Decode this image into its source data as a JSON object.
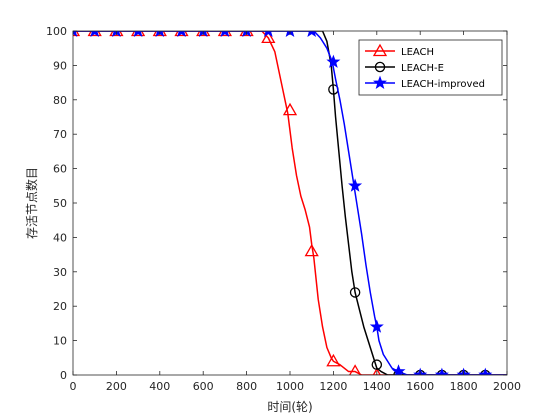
{
  "chart_data": {
    "type": "line",
    "xlabel": "时间(轮)",
    "ylabel": "存活节点数目",
    "xlim": [
      0,
      2000
    ],
    "ylim": [
      0,
      100
    ],
    "xticks": [
      0,
      200,
      400,
      600,
      800,
      1000,
      1200,
      1400,
      1600,
      1800,
      2000
    ],
    "yticks": [
      0,
      10,
      20,
      30,
      40,
      50,
      60,
      70,
      80,
      90,
      100
    ],
    "grid": false,
    "legend_position": "top-right",
    "series": [
      {
        "name": "LEACH",
        "color": "#ff0000",
        "marker": "triangle",
        "x": [
          0,
          870,
          900,
          930,
          960,
          990,
          1010,
          1030,
          1050,
          1070,
          1090,
          1100,
          1110,
          1130,
          1150,
          1170,
          1190,
          1200,
          1230,
          1270,
          1300,
          1330,
          1370,
          1400,
          1450,
          2000
        ],
        "y": [
          100,
          100,
          98,
          94,
          85,
          76,
          66,
          58,
          52,
          48,
          43,
          38,
          34,
          22,
          14,
          8,
          5,
          4,
          3,
          1,
          1,
          0,
          0,
          0,
          0,
          0
        ],
        "marker_x": [
          0,
          100,
          200,
          300,
          400,
          500,
          600,
          700,
          800,
          900,
          1000,
          1100,
          1200,
          1300,
          1400
        ],
        "marker_y": [
          100,
          100,
          100,
          100,
          100,
          100,
          100,
          100,
          100,
          98,
          77,
          36,
          4,
          1,
          0
        ]
      },
      {
        "name": "LEACH-E",
        "color": "#000000",
        "marker": "circle",
        "x": [
          0,
          1150,
          1170,
          1190,
          1200,
          1210,
          1225,
          1240,
          1255,
          1270,
          1285,
          1300,
          1320,
          1340,
          1360,
          1380,
          1390,
          1400,
          1420,
          1450,
          2000
        ],
        "y": [
          100,
          100,
          97,
          90,
          83,
          75,
          65,
          55,
          46,
          38,
          30,
          24,
          19,
          14,
          10,
          6,
          4,
          2,
          1,
          0,
          0
        ],
        "marker_x": [
          1200,
          1300,
          1400,
          1500,
          1600,
          1700,
          1800,
          1900
        ],
        "marker_y": [
          83,
          24,
          3,
          0,
          0,
          0,
          0,
          0
        ]
      },
      {
        "name": "LEACH-improved",
        "color": "#0000ff",
        "marker": "star",
        "x": [
          0,
          1110,
          1140,
          1170,
          1195,
          1210,
          1230,
          1250,
          1270,
          1290,
          1310,
          1330,
          1350,
          1370,
          1390,
          1400,
          1410,
          1430,
          1450,
          1470,
          1500,
          1540,
          2000
        ],
        "y": [
          100,
          100,
          98,
          95,
          91,
          86,
          80,
          73,
          65,
          57,
          49,
          41,
          32,
          24,
          17,
          14,
          10,
          6,
          4,
          2,
          1,
          0,
          0
        ],
        "marker_x": [
          0,
          100,
          200,
          300,
          400,
          500,
          600,
          700,
          800,
          900,
          1000,
          1100,
          1200,
          1300,
          1400,
          1500,
          1600,
          1700,
          1800,
          1900
        ],
        "marker_y": [
          100,
          100,
          100,
          100,
          100,
          100,
          100,
          100,
          100,
          100,
          100,
          100,
          91,
          55,
          14,
          1,
          0,
          0,
          0,
          0
        ]
      }
    ]
  }
}
